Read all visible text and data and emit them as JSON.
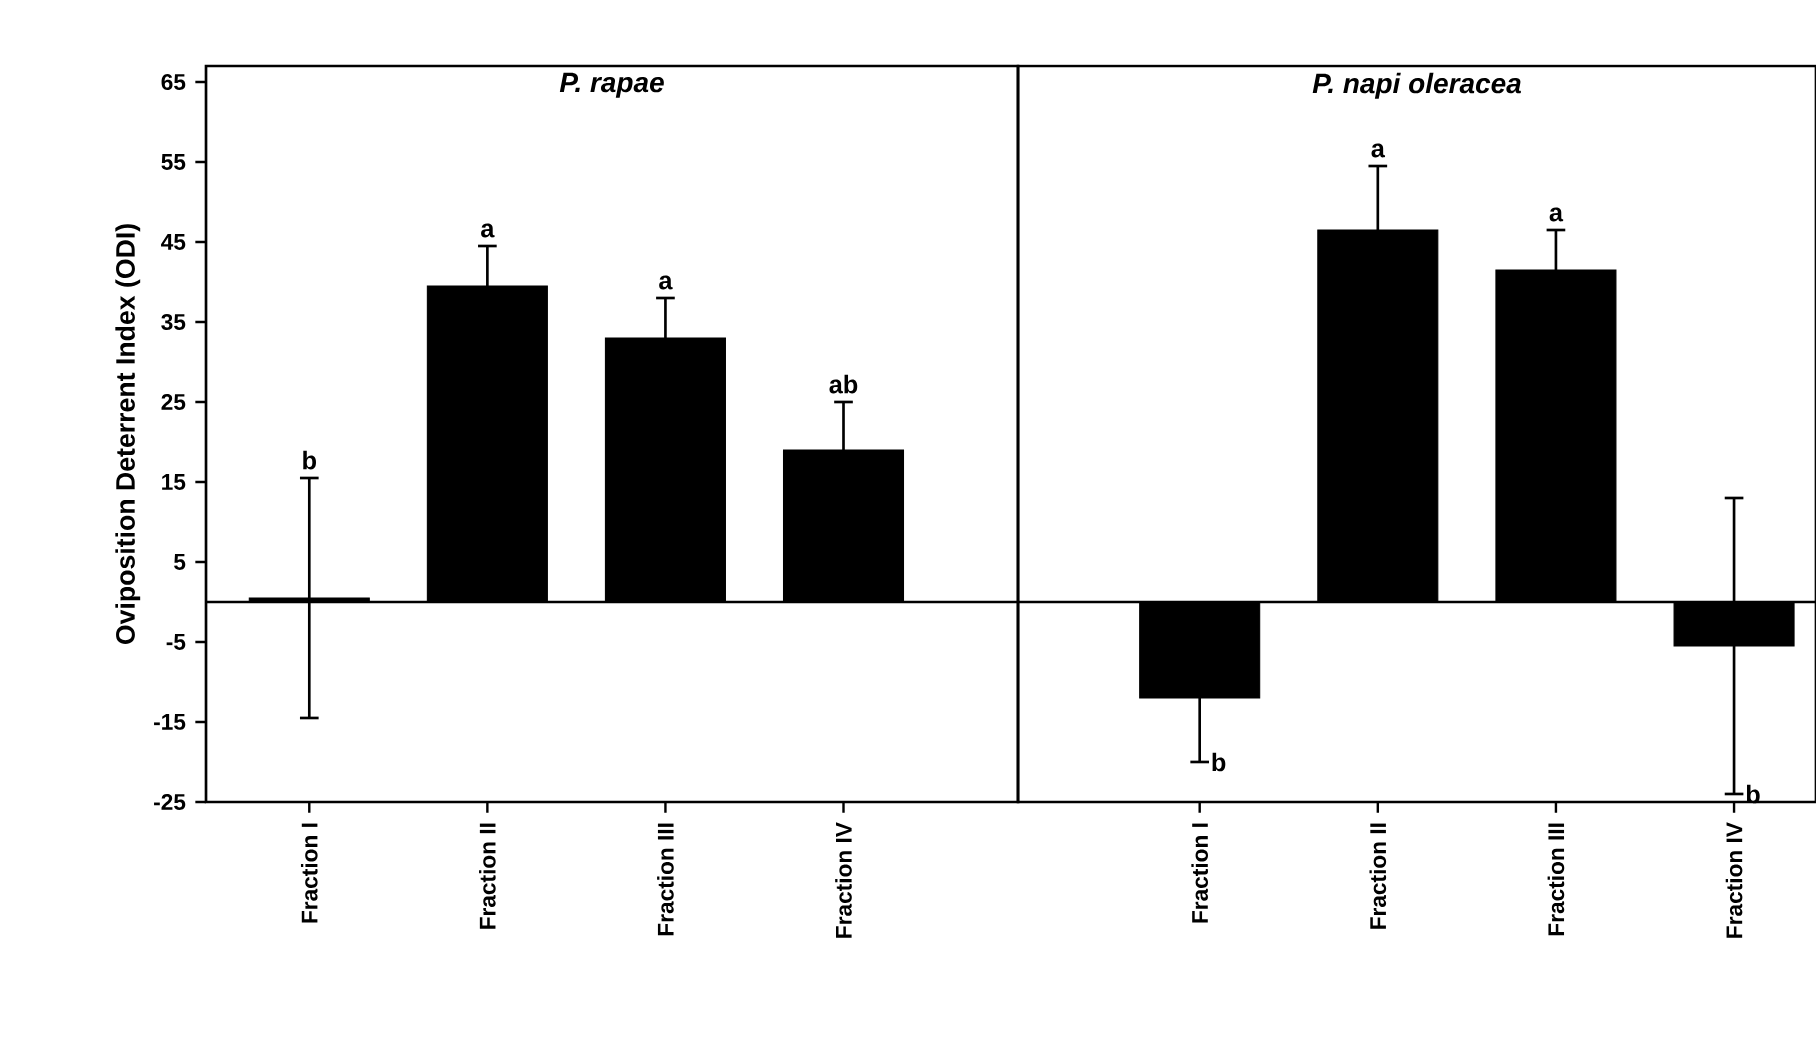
{
  "chart_data": [
    {
      "type": "bar",
      "title": "P.  rapae",
      "ylabel": "Oviposition  Deterrent  Index  (ODI)",
      "categories": [
        "Fraction I",
        "Fraction II",
        "Fraction III",
        "Fraction IV"
      ],
      "series": [
        {
          "color": "#000000",
          "values": [
            0.5,
            39.5,
            33,
            19
          ],
          "errors": [
            15,
            5,
            5,
            6
          ]
        }
      ],
      "ylim": [
        -25,
        67
      ],
      "yticks": [
        -25,
        -15,
        -5,
        5,
        15,
        25,
        35,
        45,
        55,
        65
      ],
      "ref_lines": [
        {
          "axis": "y",
          "value": 0,
          "color": "#000000",
          "line_style": "solid"
        }
      ],
      "annotations": [
        {
          "text": "b",
          "x": "Fraction I",
          "y": 15.5
        },
        {
          "text": "a",
          "x": "Fraction II",
          "y": 44.5
        },
        {
          "text": "a",
          "x": "Fraction III",
          "y": 38
        },
        {
          "text": "ab",
          "x": "Fraction IV",
          "y": 25
        }
      ]
    },
    {
      "type": "bar",
      "title": "P.  napi  oleracea",
      "categories": [
        "Fraction I",
        "Fraction II",
        "Fraction III",
        "Fraction IV"
      ],
      "series": [
        {
          "color": "#000000",
          "values": [
            -12,
            46.5,
            41.5,
            -5.5
          ],
          "errors": [
            8,
            8,
            5,
            18.5
          ]
        }
      ],
      "ylim": [
        -25,
        67
      ],
      "tick_labels": "x",
      "ref_lines": [
        {
          "axis": "y",
          "value": 0,
          "color": "#000000",
          "line_style": "solid"
        }
      ],
      "annotations": [
        {
          "text": "b",
          "x": "Fraction I",
          "y": -20
        },
        {
          "text": "a",
          "x": "Fraction II",
          "y": 54.5
        },
        {
          "text": "a",
          "x": "Fraction III",
          "y": 46.5
        },
        {
          "text": "b",
          "x": "Fraction IV",
          "y": -24
        }
      ]
    }
  ]
}
